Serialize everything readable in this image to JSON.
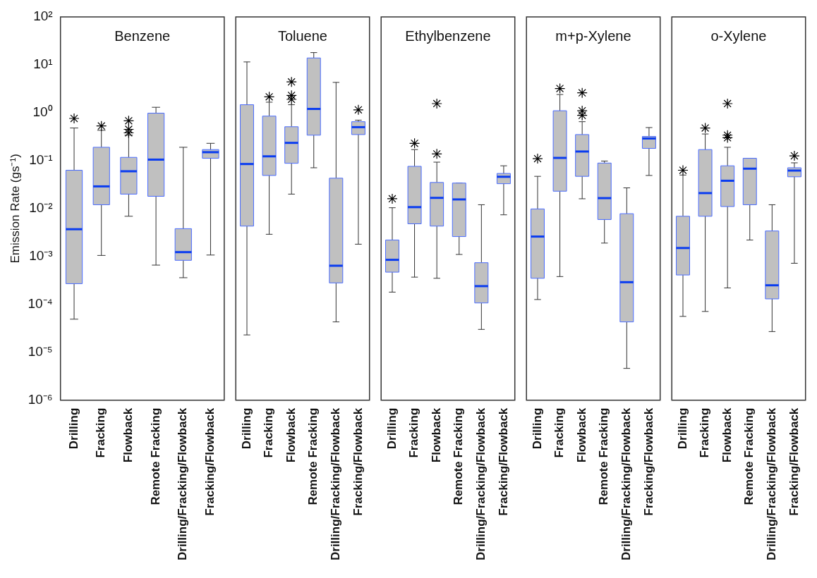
{
  "chart_data": [
    {
      "type": "box",
      "title": "Benzene",
      "ylabel": "Emission Rate (gs⁻¹)",
      "log": true,
      "color": "#c0c0c0",
      "ylim": [
        1e-06,
        100
      ],
      "yticks": [
        {
          "value": 100,
          "label": "10²"
        },
        {
          "value": 10,
          "label": "10¹"
        },
        {
          "value": 1,
          "label": "10⁰"
        },
        {
          "value": 0.1,
          "label": "10⁻¹"
        },
        {
          "value": 0.01,
          "label": "10⁻²"
        },
        {
          "value": 0.001,
          "label": "10⁻³"
        },
        {
          "value": 0.0001,
          "label": "10⁻⁴"
        },
        {
          "value": 1e-05,
          "label": "10⁻⁵"
        },
        {
          "value": 1e-06,
          "label": "10⁻⁶"
        }
      ],
      "categories": [
        "Drilling",
        "Fracking",
        "Flowback",
        "Remote Fracking",
        "Drilling/Fracking/Flowback",
        "Fracking/Flowback"
      ],
      "boxes": [
        {
          "low": 4.9e-05,
          "q1": 0.00027,
          "median": 0.0037,
          "q3": 0.063,
          "high": 0.48,
          "outliers": [
            0.76
          ]
        },
        {
          "low": 0.00105,
          "q1": 0.012,
          "median": 0.029,
          "q3": 0.19,
          "high": 0.43,
          "outliers": [
            0.53
          ]
        },
        {
          "low": 0.0069,
          "q1": 0.02,
          "median": 0.06,
          "q3": 0.117,
          "high": 0.34,
          "outliers": [
            0.68,
            0.45,
            0.38
          ]
        },
        {
          "low": 0.00066,
          "q1": 0.018,
          "median": 0.105,
          "q3": 0.98,
          "high": 1.3
        },
        {
          "low": 0.00036,
          "q1": 0.00083,
          "median": 0.00123,
          "q3": 0.0038,
          "high": 0.19
        },
        {
          "low": 0.00107,
          "q1": 0.112,
          "median": 0.15,
          "q3": 0.17,
          "high": 0.23
        }
      ]
    },
    {
      "type": "box",
      "title": "Toluene",
      "log": true,
      "color": "#c0c0c0",
      "tick_labels": "x",
      "ylim": [
        1e-06,
        100
      ],
      "categories": [
        "Drilling",
        "Fracking",
        "Flowback",
        "Remote Fracking",
        "Drilling/Fracking/Flowback",
        "Fracking/Flowback"
      ],
      "boxes": [
        {
          "low": 2.3e-05,
          "q1": 0.0043,
          "median": 0.085,
          "q3": 1.47,
          "high": 11.5
        },
        {
          "low": 0.0029,
          "q1": 0.049,
          "median": 0.123,
          "q3": 0.85,
          "high": 1.66,
          "outliers": [
            2.15
          ]
        },
        {
          "low": 0.02,
          "q1": 0.088,
          "median": 0.235,
          "q3": 0.51,
          "high": 1.47,
          "outliers": [
            4.4,
            2.3,
            1.9
          ]
        },
        {
          "low": 0.071,
          "q1": 0.34,
          "median": 1.2,
          "q3": 13.9,
          "high": 18
        },
        {
          "low": 4.3e-05,
          "q1": 0.00028,
          "median": 0.00064,
          "q3": 0.043,
          "high": 4.3
        },
        {
          "low": 0.0018,
          "q1": 0.35,
          "median": 0.5,
          "q3": 0.65,
          "high": 0.7,
          "outliers": [
            1.15
          ]
        }
      ]
    },
    {
      "type": "box",
      "title": "Ethylbenzene",
      "log": true,
      "color": "#c0c0c0",
      "tick_labels": "x",
      "ylim": [
        1e-06,
        100
      ],
      "categories": [
        "Drilling",
        "Fracking",
        "Flowback",
        "Remote Fracking",
        "Drilling/Fracking/Flowback",
        "Fracking/Flowback"
      ],
      "boxes": [
        {
          "low": 0.00018,
          "q1": 0.00047,
          "median": 0.00085,
          "q3": 0.0022,
          "high": 0.0104,
          "outliers": [
            0.016
          ]
        },
        {
          "low": 0.00037,
          "q1": 0.0048,
          "median": 0.0107,
          "q3": 0.076,
          "high": 0.17,
          "outliers": [
            0.23
          ]
        },
        {
          "low": 0.00035,
          "q1": 0.0043,
          "median": 0.0167,
          "q3": 0.035,
          "high": 0.093,
          "outliers": [
            1.55,
            0.138
          ]
        },
        {
          "low": 0.0011,
          "q1": 0.0026,
          "median": 0.0155,
          "q3": 0.034,
          "high": 0.034
        },
        {
          "low": 3e-05,
          "q1": 0.000107,
          "median": 0.00024,
          "q3": 0.00074,
          "high": 0.012
        },
        {
          "low": 0.0074,
          "q1": 0.033,
          "median": 0.046,
          "q3": 0.054,
          "high": 0.078
        }
      ]
    },
    {
      "type": "box",
      "title": "m+p-Xylene",
      "log": true,
      "color": "#c0c0c0",
      "tick_labels": "x",
      "ylim": [
        1e-06,
        100
      ],
      "categories": [
        "Drilling",
        "Fracking",
        "Flowback",
        "Remote Fracking",
        "Drilling/Fracking/Flowback",
        "Fracking/Flowback"
      ],
      "boxes": [
        {
          "low": 0.000126,
          "q1": 0.00035,
          "median": 0.0026,
          "q3": 0.0098,
          "high": 0.047,
          "outliers": [
            0.11
          ]
        },
        {
          "low": 0.00038,
          "q1": 0.023,
          "median": 0.114,
          "q3": 1.1,
          "high": 2.4,
          "outliers": [
            3.2
          ]
        },
        {
          "low": 0.016,
          "q1": 0.047,
          "median": 0.155,
          "q3": 0.35,
          "high": 0.65,
          "outliers": [
            2.6,
            1.1,
            0.88
          ]
        },
        {
          "low": 0.0019,
          "q1": 0.0059,
          "median": 0.0165,
          "q3": 0.089,
          "high": 0.098
        },
        {
          "low": 4.6e-06,
          "q1": 4.3e-05,
          "median": 0.00029,
          "q3": 0.0078,
          "high": 0.027
        },
        {
          "low": 0.049,
          "q1": 0.18,
          "median": 0.29,
          "q3": 0.32,
          "high": 0.49
        }
      ]
    },
    {
      "type": "box",
      "title": "o-Xylene",
      "log": true,
      "color": "#c0c0c0",
      "tick_labels": "x",
      "ylim": [
        1e-06,
        100
      ],
      "categories": [
        "Drilling",
        "Fracking",
        "Flowback",
        "Remote Fracking",
        "Drilling/Fracking/Flowback",
        "Fracking/Flowback"
      ],
      "boxes": [
        {
          "low": 5.6e-05,
          "q1": 0.00041,
          "median": 0.0015,
          "q3": 0.0069,
          "high": 0.05,
          "outliers": [
            0.063
          ]
        },
        {
          "low": 7.1e-05,
          "q1": 0.0069,
          "median": 0.021,
          "q3": 0.17,
          "high": 0.36,
          "outliers": [
            0.48
          ]
        },
        {
          "low": 0.00022,
          "q1": 0.011,
          "median": 0.038,
          "q3": 0.078,
          "high": 0.19,
          "outliers": [
            1.55,
            0.34,
            0.3
          ]
        },
        {
          "low": 0.0022,
          "q1": 0.012,
          "median": 0.068,
          "q3": 0.112,
          "high": 0.112
        },
        {
          "low": 2.7e-05,
          "q1": 0.00013,
          "median": 0.00025,
          "q3": 0.0034,
          "high": 0.012
        },
        {
          "low": 0.00072,
          "q1": 0.046,
          "median": 0.062,
          "q3": 0.071,
          "high": 0.09,
          "outliers": [
            0.126
          ]
        }
      ]
    }
  ]
}
